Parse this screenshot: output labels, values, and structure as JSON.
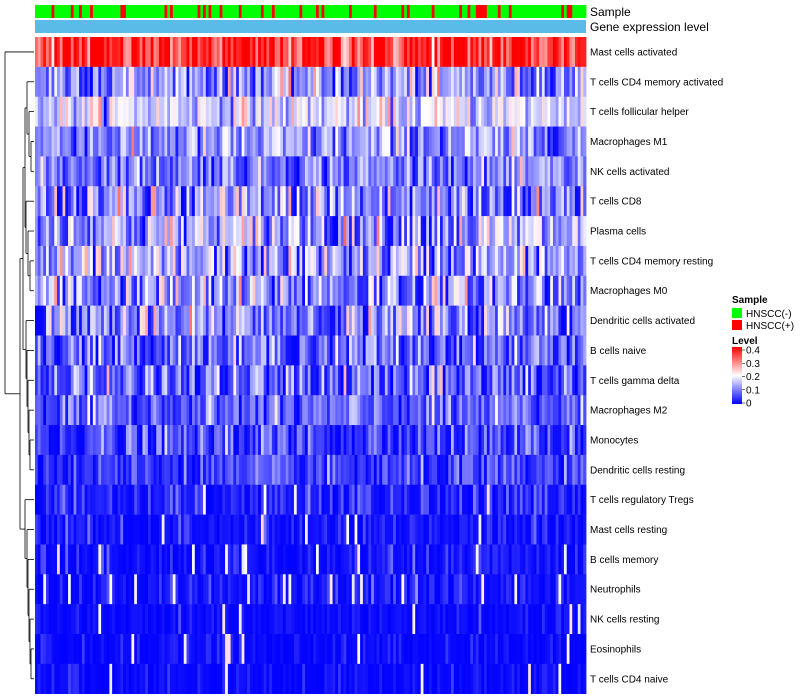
{
  "chart_data": {
    "type": "heatmap",
    "n_samples": 200,
    "annotation_tracks": [
      {
        "key": "sample",
        "label": "Sample"
      },
      {
        "key": "expression",
        "label": "Gene expression level"
      }
    ],
    "expression_track_color": "#5bbbe8",
    "rows": [
      {
        "name": "Mast cells activated",
        "mean": 0.36,
        "sd": 0.07
      },
      {
        "name": "T cells CD4 memory activated",
        "mean": 0.12,
        "sd": 0.07
      },
      {
        "name": "T cells follicular helper",
        "mean": 0.17,
        "sd": 0.05
      },
      {
        "name": "Macrophages M1",
        "mean": 0.11,
        "sd": 0.06
      },
      {
        "name": "NK cells activated",
        "mean": 0.1,
        "sd": 0.05
      },
      {
        "name": "T cells CD8",
        "mean": 0.1,
        "sd": 0.09
      },
      {
        "name": "Plasma cells",
        "mean": 0.13,
        "sd": 0.08
      },
      {
        "name": "T cells CD4 memory resting",
        "mean": 0.12,
        "sd": 0.07
      },
      {
        "name": "Macrophages M0",
        "mean": 0.11,
        "sd": 0.08
      },
      {
        "name": "Dendritic cells activated",
        "mean": 0.1,
        "sd": 0.08
      },
      {
        "name": "B cells naive",
        "mean": 0.08,
        "sd": 0.06
      },
      {
        "name": "T cells gamma delta",
        "mean": 0.07,
        "sd": 0.07
      },
      {
        "name": "Macrophages M2",
        "mean": 0.07,
        "sd": 0.05
      },
      {
        "name": "Monocytes",
        "mean": 0.05,
        "sd": 0.05
      },
      {
        "name": "Dendritic cells resting",
        "mean": 0.04,
        "sd": 0.04
      },
      {
        "name": "T cells regulatory  Tregs",
        "mean": 0.02,
        "sd": 0.04
      },
      {
        "name": "Mast cells resting",
        "mean": 0.01,
        "sd": 0.03
      },
      {
        "name": "B cells memory",
        "mean": 0.01,
        "sd": 0.03
      },
      {
        "name": "Neutrophils",
        "mean": 0.01,
        "sd": 0.03
      },
      {
        "name": "NK cells resting",
        "mean": 0.0,
        "sd": 0.02
      },
      {
        "name": "Eosinophils",
        "mean": 0.0,
        "sd": 0.02
      },
      {
        "name": "T cells CD4 naive",
        "mean": 0.0,
        "sd": 0.02
      }
    ],
    "sample_legend": {
      "title": "Sample",
      "items": [
        {
          "label": "HNSCC(-)",
          "color": "#00ff00"
        },
        {
          "label": "HNSCC(+)",
          "color": "#ff0000"
        }
      ]
    },
    "level_legend": {
      "title": "Level",
      "ticks": [
        0.4,
        0.3,
        0.2,
        0.1,
        0
      ],
      "range": [
        0,
        0.4
      ],
      "colors": {
        "low": "#0000ff",
        "mid": "#ffffff",
        "high": "#ff0000"
      },
      "mid_value": 0.2
    }
  }
}
